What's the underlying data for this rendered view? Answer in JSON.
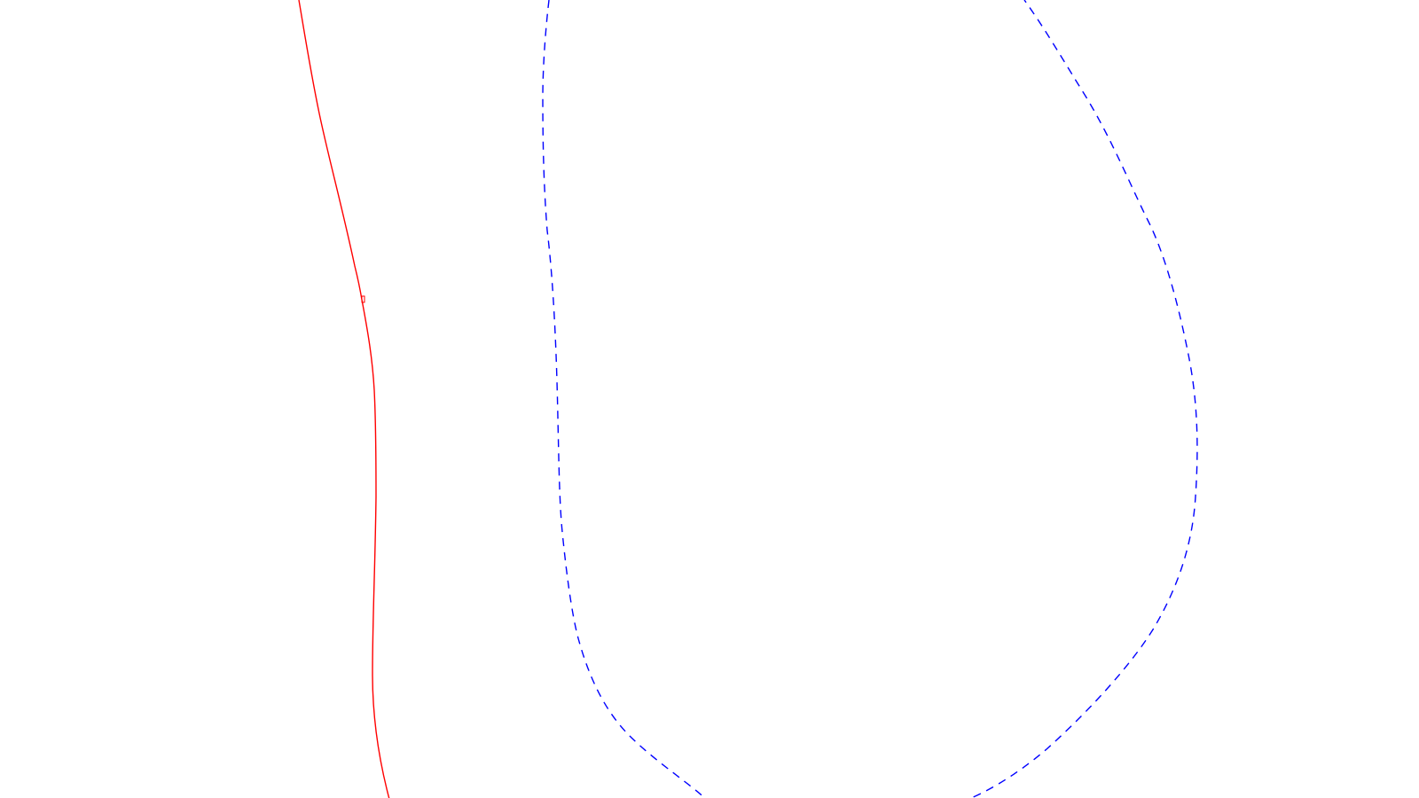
{
  "drawing": {
    "background_color": "#ffffff",
    "curves": [
      {
        "name": "solid-red-curve",
        "stroke_color": "#ff0000",
        "line_style": "solid"
      },
      {
        "name": "dashed-blue-curve",
        "stroke_color": "#0000ff",
        "line_style": "dashed"
      }
    ],
    "markers": [
      {
        "name": "point-marker",
        "stroke_color": "#ff0000",
        "shape": "small-rectangle"
      }
    ]
  }
}
